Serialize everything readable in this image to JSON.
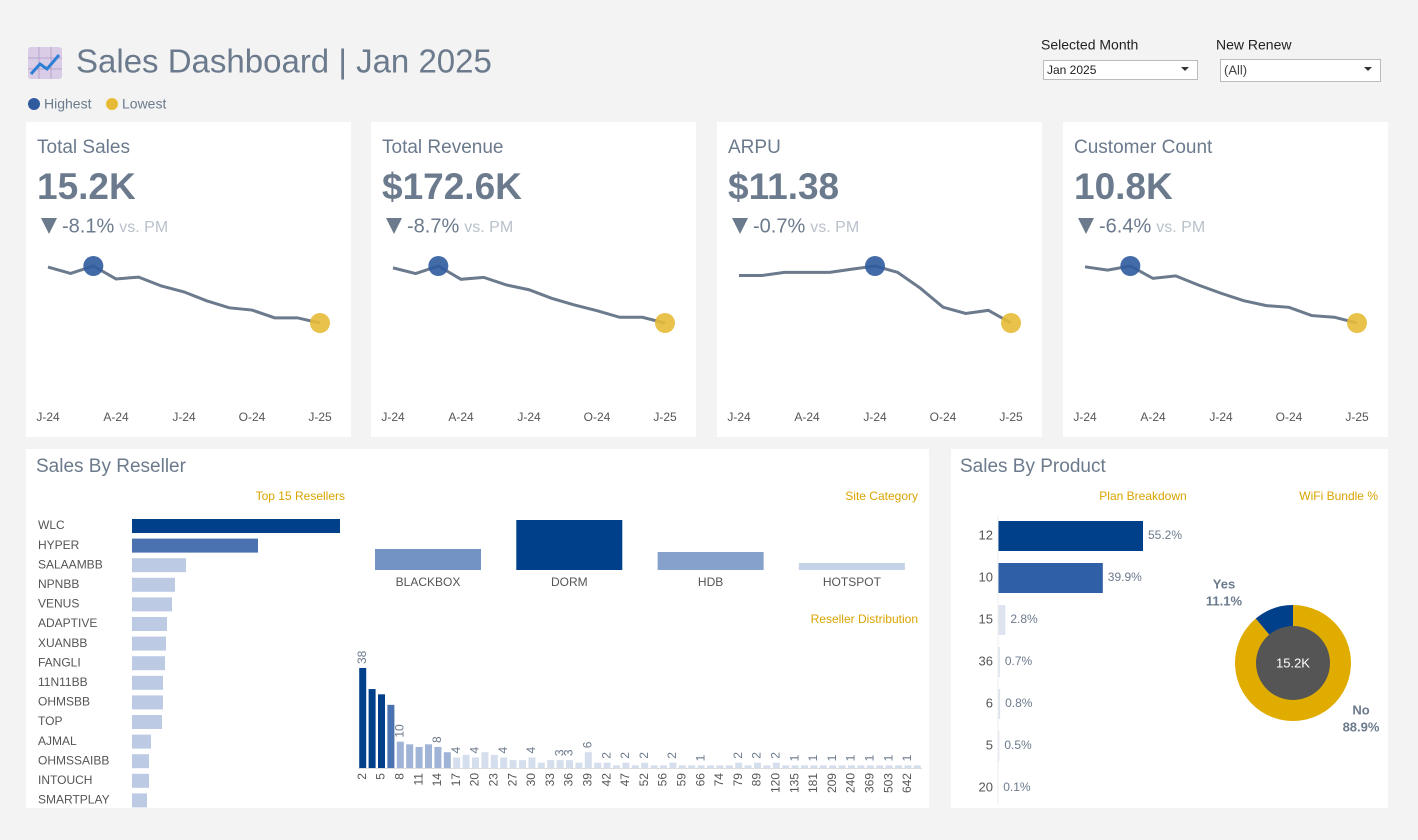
{
  "header": {
    "title": "Sales Dashboard | Jan 2025",
    "legend": [
      {
        "label": "Highest",
        "color": "#2f5b9e"
      },
      {
        "label": "Lowest",
        "color": "#e7bb37"
      }
    ]
  },
  "filters": [
    {
      "label": "Selected Month",
      "value": "Jan 2025"
    },
    {
      "label": "New Renew",
      "value": "(All)"
    }
  ],
  "kpis": [
    {
      "title": "Total Sales",
      "value": "15.2K",
      "change": "-8.1%",
      "compare": "vs. PM"
    },
    {
      "title": "Total Revenue",
      "value": "$172.6K",
      "change": "-8.7%",
      "compare": "vs. PM"
    },
    {
      "title": "ARPU",
      "value": "$11.38",
      "change": "-0.7%",
      "compare": "vs. PM"
    },
    {
      "title": "Customer Count",
      "value": "10.8K",
      "change": "-6.4%",
      "compare": "vs. PM"
    }
  ],
  "panels": [
    {
      "title": "Sales By Reseller"
    },
    {
      "title": "Sales By Product"
    }
  ],
  "chart_data": [
    {
      "type": "line",
      "color": "#6b7a8c",
      "categories": [
        "J-24",
        null,
        null,
        "A-24",
        null,
        null,
        "J-24",
        null,
        null,
        "O-24",
        null,
        null,
        "J-25"
      ],
      "values": [
        30.3,
        28.6,
        30.6,
        27.1,
        27.6,
        25.2,
        23.6,
        21.2,
        19.3,
        18.7,
        16.6,
        16.6,
        15.2
      ]
    },
    {
      "type": "line",
      "color": "#6b7a8c",
      "categories": [
        "J-24",
        null,
        null,
        "A-24",
        null,
        null,
        "J-24",
        null,
        null,
        "O-24",
        null,
        null,
        "J-25"
      ],
      "values": [
        331.0,
        314.6,
        336.4,
        298.2,
        303.7,
        281.9,
        268.2,
        243.6,
        224.5,
        208.1,
        189.0,
        189.0,
        172.6
      ]
    },
    {
      "type": "line",
      "color": "#6b7a8c",
      "categories": [
        "J-24",
        null,
        null,
        "A-24",
        null,
        null,
        "J-24",
        null,
        null,
        "O-24",
        null,
        null,
        "J-25"
      ],
      "values": [
        11.68,
        11.68,
        11.7,
        11.7,
        11.7,
        11.72,
        11.74,
        11.7,
        11.6,
        11.48,
        11.44,
        11.46,
        11.38
      ]
    },
    {
      "type": "line",
      "color": "#6b7a8c",
      "categories": [
        "J-24",
        null,
        null,
        "A-24",
        null,
        null,
        "J-24",
        null,
        null,
        "O-24",
        null,
        null,
        "J-25"
      ],
      "values": [
        17.6,
        17.2,
        17.7,
        16.2,
        16.5,
        15.4,
        14.4,
        13.5,
        12.9,
        12.7,
        11.7,
        11.5,
        10.8
      ]
    },
    {
      "type": "bar",
      "orientation": "horizontal",
      "title": "Top 15 Resellers",
      "categories": [
        "WLC",
        "HYPER",
        "SALAAMBB",
        "NPNBB",
        "VENUS",
        "ADAPTIVE",
        "XUANBB",
        "FANGLI",
        "11N11BB",
        "OHMSBB",
        "TOP",
        "AJMAL",
        "OHMSSAIBB",
        "INTOUCH",
        "SMARTPLAY"
      ],
      "values": [
        2080,
        1260,
        540,
        430,
        400,
        350,
        340,
        330,
        310,
        310,
        300,
        190,
        170,
        170,
        150
      ],
      "colors": [
        "#003f8a",
        "#4a72b0",
        "#bccbe3",
        "#bccbe3",
        "#bccbe3",
        "#bccbe3",
        "#bccbe3",
        "#bccbe3",
        "#bccbe3",
        "#bccbe3",
        "#bccbe3",
        "#bccbe3",
        "#bccbe3",
        "#bccbe3",
        "#bccbe3"
      ]
    },
    {
      "type": "bar",
      "orientation": "vertical",
      "title": "Site Category",
      "categories": [
        "BLACKBOX",
        "DORM",
        "HDB",
        "HOTSPOT"
      ],
      "values": [
        2100,
        5000,
        1800,
        700
      ],
      "colors": [
        "#7393c4",
        "#003f8a",
        "#86a1cc",
        "#c5d3e8"
      ]
    },
    {
      "type": "bar",
      "orientation": "vertical",
      "title": "Reseller Distribution",
      "categories": [
        "2",
        null,
        "5",
        null,
        "8",
        null,
        "11",
        null,
        "14",
        null,
        "17",
        null,
        "20",
        null,
        "23",
        null,
        "27",
        null,
        "30",
        null,
        "33",
        null,
        "36",
        null,
        "39",
        null,
        "42",
        null,
        "47",
        null,
        "52",
        null,
        "56",
        null,
        "59",
        null,
        "66",
        null,
        "74",
        null,
        "79",
        null,
        "89",
        null,
        "120",
        null,
        "135",
        null,
        "181",
        null,
        "209",
        null,
        "240",
        null,
        "369",
        null,
        "503",
        null,
        "642",
        null
      ],
      "values": [
        38,
        30,
        28,
        24,
        10,
        9,
        8,
        9,
        8,
        6,
        4,
        5,
        4,
        6,
        5,
        4,
        3,
        3,
        4,
        2,
        3,
        3,
        3,
        2,
        6,
        2,
        2,
        1,
        2,
        1,
        2,
        1,
        1,
        2,
        1,
        1,
        1,
        1,
        1,
        1,
        2,
        1,
        2,
        1,
        2,
        1,
        1,
        1,
        1,
        1,
        1,
        1,
        1,
        1,
        1,
        1,
        1,
        1,
        1,
        1
      ],
      "value_labels": [
        "38",
        null,
        null,
        null,
        "10",
        null,
        null,
        null,
        "8",
        null,
        "4",
        null,
        "4",
        null,
        null,
        "4",
        null,
        null,
        "4",
        null,
        null,
        "3",
        "3",
        null,
        "6",
        null,
        "2",
        null,
        "2",
        null,
        "2",
        null,
        null,
        "2",
        null,
        null,
        "1",
        null,
        null,
        null,
        "2",
        null,
        "2",
        null,
        "2",
        null,
        "1",
        null,
        "1",
        null,
        "1",
        null,
        "1",
        null,
        "1",
        null,
        "1",
        null,
        "1",
        null
      ],
      "colors": [
        "#003f8a",
        "#003f8a",
        "#003f8a",
        "#4a72b0",
        "#9fb4d6",
        "#9fb4d6",
        "#9fb4d6",
        "#9fb4d6",
        "#9fb4d6",
        "#9fb4d6",
        "#d5deec",
        "#d5deec",
        "#d5deec",
        "#d5deec",
        "#d5deec",
        "#d5deec",
        "#d5deec",
        "#d5deec",
        "#d5deec",
        "#d5deec",
        "#d5deec",
        "#d5deec",
        "#d5deec",
        "#d5deec",
        "#d5deec",
        "#d5deec",
        "#d5deec",
        "#d5deec",
        "#d5deec",
        "#d5deec",
        "#d5deec",
        "#d5deec",
        "#d5deec",
        "#d5deec",
        "#d5deec",
        "#d5deec",
        "#d5deec",
        "#d5deec",
        "#d5deec",
        "#d5deec",
        "#d5deec",
        "#d5deec",
        "#d5deec",
        "#d5deec",
        "#d5deec",
        "#d5deec",
        "#d5deec",
        "#d5deec",
        "#d5deec",
        "#d5deec",
        "#d5deec",
        "#d5deec",
        "#d5deec",
        "#d5deec",
        "#d5deec",
        "#d5deec",
        "#d5deec",
        "#d5deec",
        "#d5deec",
        "#d5deec"
      ]
    },
    {
      "type": "bar",
      "orientation": "horizontal",
      "title": "Plan Breakdown",
      "categories": [
        "12",
        "10",
        "15",
        "36",
        "6",
        "5",
        "20"
      ],
      "values": [
        55.2,
        39.9,
        2.8,
        0.7,
        0.8,
        0.5,
        0.1
      ],
      "value_labels": [
        "55.2%",
        "39.9%",
        "2.8%",
        "0.7%",
        "0.8%",
        "0.5%",
        "0.1%"
      ],
      "colors": [
        "#003f8a",
        "#2f5fa7",
        "#dde4ef",
        "#dde4ef",
        "#dde4ef",
        "#dde4ef",
        "#dde4ef"
      ]
    },
    {
      "type": "pie",
      "title": "WiFi Bundle %",
      "center_label": "15.2K",
      "categories": [
        "Yes",
        "No"
      ],
      "values": [
        11.1,
        88.9
      ],
      "value_labels": [
        "11.1%",
        "88.9%"
      ],
      "colors": [
        "#003f8a",
        "#e0ac00"
      ]
    }
  ]
}
